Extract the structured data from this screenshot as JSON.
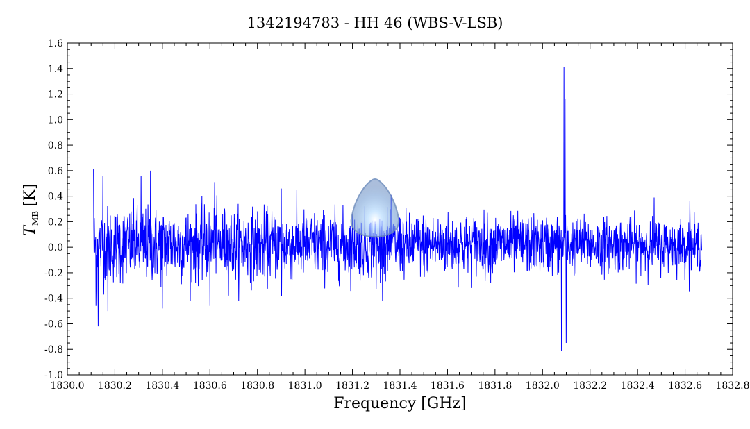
{
  "chart_data": {
    "type": "line",
    "title": "1342194783 - HH 46 (WBS-V-LSB)",
    "xlabel": "Frequency [GHz]",
    "ylabel_main": "T",
    "ylabel_sub": "MB",
    "ylabel_unit": "[K]",
    "xlim": [
      1830.0,
      1832.8
    ],
    "ylim": [
      -1.0,
      1.6
    ],
    "x_ticks": [
      "1830.0",
      "1830.2",
      "1830.4",
      "1830.6",
      "1830.8",
      "1831.0",
      "1831.2",
      "1831.4",
      "1831.6",
      "1831.8",
      "1832.0",
      "1832.2",
      "1832.4",
      "1832.6",
      "1832.8"
    ],
    "y_ticks": [
      "-1.0",
      "-0.8",
      "-0.6",
      "-0.4",
      "-0.2",
      "0.0",
      "0.2",
      "0.4",
      "0.6",
      "0.8",
      "1.0",
      "1.2",
      "1.4",
      "1.6"
    ],
    "line_color": "#0000ff",
    "series": [
      {
        "x_range": [
          1830.11,
          1832.67
        ],
        "noise_rms": 0.12,
        "features": [
          {
            "x": 1830.11,
            "y": 0.61
          },
          {
            "x": 1830.12,
            "y": -0.46
          },
          {
            "x": 1830.13,
            "y": -0.62
          },
          {
            "x": 1830.15,
            "y": 0.56
          },
          {
            "x": 1830.17,
            "y": -0.5
          },
          {
            "x": 1830.31,
            "y": 0.56
          },
          {
            "x": 1830.35,
            "y": 0.6
          },
          {
            "x": 1830.4,
            "y": -0.48
          },
          {
            "x": 1830.6,
            "y": -0.46
          },
          {
            "x": 1830.62,
            "y": 0.51
          },
          {
            "x": 1830.9,
            "y": 0.46
          },
          {
            "x": 1830.9,
            "y": -0.38
          },
          {
            "x": 1831.3,
            "y": -0.33
          },
          {
            "x": 1832.08,
            "y": -0.81
          },
          {
            "x": 1832.09,
            "y": 1.41
          },
          {
            "x": 1832.095,
            "y": 1.16
          },
          {
            "x": 1832.1,
            "y": -0.75
          },
          {
            "x": 1832.47,
            "y": 0.39
          },
          {
            "x": 1832.62,
            "y": 0.36
          }
        ]
      }
    ]
  }
}
